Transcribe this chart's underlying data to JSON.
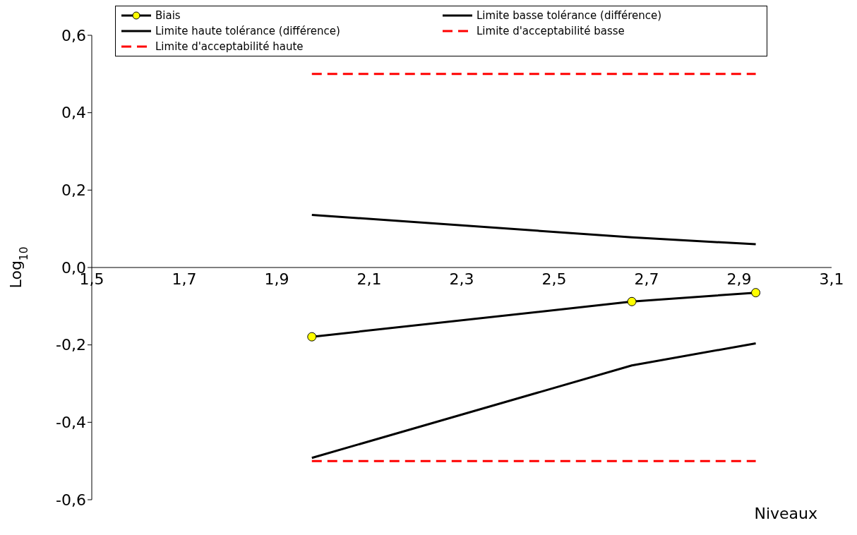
{
  "chart_data": {
    "type": "line",
    "xlabel": "Niveaux",
    "ylabel": "Log$_{10}$",
    "xlim": [
      1.5,
      3.1
    ],
    "xticks": [
      {
        "value": 1.5,
        "label": "1,5"
      },
      {
        "value": 1.7,
        "label": "1,7"
      },
      {
        "value": 1.9,
        "label": "1,9"
      },
      {
        "value": 2.1,
        "label": "2,1"
      },
      {
        "value": 2.3,
        "label": "2,3"
      },
      {
        "value": 2.5,
        "label": "2,5"
      },
      {
        "value": 2.7,
        "label": "2,7"
      },
      {
        "value": 2.9,
        "label": "2,9"
      },
      {
        "value": 3.1,
        "label": "3,1"
      }
    ],
    "ylim": [
      -0.6,
      0.6
    ],
    "yticks": [
      {
        "value": -0.6,
        "label": "-0,6"
      },
      {
        "value": -0.4,
        "label": "-0,4"
      },
      {
        "value": -0.2,
        "label": "-0,2"
      },
      {
        "value": 0,
        "label": "0,0"
      },
      {
        "value": 0.2,
        "label": "0,2"
      },
      {
        "value": 0.4,
        "label": "0,4"
      },
      {
        "value": 0.6,
        "label": "0,6"
      }
    ],
    "grid": false,
    "legend": "top",
    "series": [
      {
        "name": "Biais",
        "color": "#000000",
        "x": [
          1.976,
          2.668,
          2.936
        ],
        "values": [
          -0.179,
          -0.088,
          -0.065
        ],
        "marker": "circle",
        "line_style": "solid"
      },
      {
        "name": "Limite basse tolérance (différence)",
        "color": "#000000",
        "x": [
          1.976,
          2.668,
          2.936
        ],
        "values": [
          -0.492,
          -0.253,
          -0.196
        ],
        "marker": "none",
        "line_style": "solid"
      },
      {
        "name": "Limite haute tolérance (différence)",
        "color": "#000000",
        "x": [
          1.976,
          2.668,
          2.936
        ],
        "values": [
          0.136,
          0.078,
          0.06
        ],
        "marker": "none",
        "line_style": "solid"
      },
      {
        "name": "Limite d'acceptabilité basse",
        "color": "#ff0000",
        "x": [
          1.976,
          2.936
        ],
        "values": [
          -0.5,
          -0.5
        ],
        "marker": "none",
        "line_style": "dashed"
      },
      {
        "name": "Limite d'acceptabilité haute",
        "color": "#ff0000",
        "x": [
          1.976,
          2.936
        ],
        "values": [
          0.5,
          0.5
        ],
        "marker": "none",
        "line_style": "dashed"
      }
    ]
  }
}
